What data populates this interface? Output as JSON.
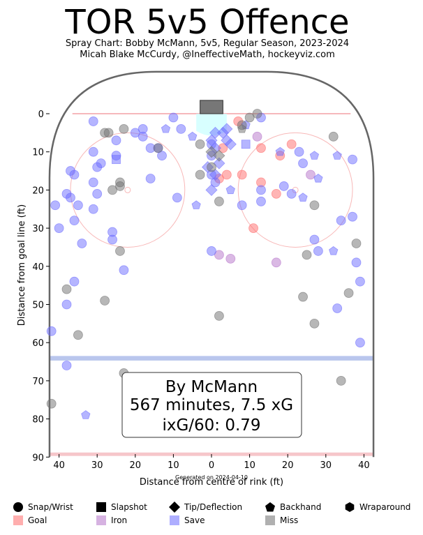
{
  "chart_data": {
    "type": "scatter",
    "title": "TOR 5v5 Offence",
    "subtitle_1": "Spray Chart: Bobby McMann, 5v5, Regular Season, 2023-2024",
    "subtitle_2": "Micah Blake McCurdy, @IneffectiveMath, hockeyviz.com",
    "xlabel": "Distance from centre of rink (ft)",
    "ylabel": "Distance from goal line (ft)",
    "footnote": "Generated on 2024-04-10",
    "x_ticks": [
      "40",
      "30",
      "20",
      "10",
      "0",
      "10",
      "20",
      "30",
      "40"
    ],
    "x_tick_values": [
      -40,
      -30,
      -20,
      -10,
      0,
      10,
      20,
      30,
      40
    ],
    "y_ticks": [
      "0",
      "10",
      "20",
      "30",
      "40",
      "50",
      "60",
      "70",
      "80",
      "90"
    ],
    "xlim": [
      -42.5,
      42.5
    ],
    "ylim": [
      -11,
      90
    ],
    "summary": {
      "line1": "By McMann",
      "line2": "567 minutes, 7.5 xG",
      "line3": "ixG/60: 0.79"
    },
    "colors": {
      "goal": "#ff6b6b",
      "iron": "#b573c9",
      "save": "#6b6bff",
      "miss": "#707070",
      "goal_line": "#f4a0a6",
      "blue_line": "#a8b8e8",
      "circle": "#f8b8b8",
      "crease": "#c8ffff"
    },
    "legend": {
      "shapes": [
        {
          "label": "Snap/Wrist",
          "icon": "circle"
        },
        {
          "label": "Slapshot",
          "icon": "square"
        },
        {
          "label": "Tip/Deflection",
          "icon": "diamond"
        },
        {
          "label": "Backhand",
          "icon": "pentagon"
        },
        {
          "label": "Wraparound",
          "icon": "hexagon"
        }
      ],
      "outcomes": [
        {
          "label": "Goal",
          "key": "goal"
        },
        {
          "label": "Iron",
          "key": "iron"
        },
        {
          "label": "Save",
          "key": "save"
        },
        {
          "label": "Miss",
          "key": "miss"
        }
      ]
    },
    "series": [
      {
        "name": "Goal",
        "key": "goal",
        "points": [
          {
            "x": 7,
            "y": 2,
            "shape": "circle"
          },
          {
            "x": 21,
            "y": 8,
            "shape": "circle"
          },
          {
            "x": 13,
            "y": 9,
            "shape": "circle"
          },
          {
            "x": 8,
            "y": 16,
            "shape": "circle"
          },
          {
            "x": 4,
            "y": 16,
            "shape": "circle"
          },
          {
            "x": 2,
            "y": 17,
            "shape": "circle"
          },
          {
            "x": 3,
            "y": 9,
            "shape": "circle"
          },
          {
            "x": 18,
            "y": 11,
            "shape": "circle"
          },
          {
            "x": 13,
            "y": 18,
            "shape": "circle"
          },
          {
            "x": 17,
            "y": 21,
            "shape": "circle"
          },
          {
            "x": 11,
            "y": 30,
            "shape": "circle"
          }
        ]
      },
      {
        "name": "Iron",
        "key": "iron",
        "points": [
          {
            "x": 26,
            "y": 16,
            "shape": "circle"
          },
          {
            "x": 12,
            "y": 6,
            "shape": "circle"
          },
          {
            "x": 2,
            "y": 37,
            "shape": "circle"
          },
          {
            "x": 5,
            "y": 38,
            "shape": "circle"
          },
          {
            "x": 17,
            "y": 39,
            "shape": "circle"
          }
        ]
      },
      {
        "name": "Save",
        "key": "save",
        "points": [
          {
            "x": -25,
            "y": 7,
            "shape": "circle"
          },
          {
            "x": -18,
            "y": 6,
            "shape": "circle"
          },
          {
            "x": -18,
            "y": 4,
            "shape": "circle"
          },
          {
            "x": -10,
            "y": 1,
            "shape": "circle"
          },
          {
            "x": -31,
            "y": 2,
            "shape": "circle"
          },
          {
            "x": -20,
            "y": 5,
            "shape": "circle"
          },
          {
            "x": -8,
            "y": 4,
            "shape": "circle"
          },
          {
            "x": -31,
            "y": 10,
            "shape": "circle"
          },
          {
            "x": -25,
            "y": 11,
            "shape": "circle"
          },
          {
            "x": -16,
            "y": 9,
            "shape": "circle"
          },
          {
            "x": -13,
            "y": 11,
            "shape": "circle"
          },
          {
            "x": -14,
            "y": 9,
            "shape": "circle"
          },
          {
            "x": -29,
            "y": 13,
            "shape": "circle"
          },
          {
            "x": -30,
            "y": 14,
            "shape": "circle"
          },
          {
            "x": -37,
            "y": 15,
            "shape": "circle"
          },
          {
            "x": -36,
            "y": 16,
            "shape": "circle"
          },
          {
            "x": -31,
            "y": 18,
            "shape": "circle"
          },
          {
            "x": -16,
            "y": 17,
            "shape": "circle"
          },
          {
            "x": -38,
            "y": 21,
            "shape": "circle"
          },
          {
            "x": -37,
            "y": 22,
            "shape": "circle"
          },
          {
            "x": -30,
            "y": 21,
            "shape": "circle"
          },
          {
            "x": -41,
            "y": 24,
            "shape": "circle"
          },
          {
            "x": -35,
            "y": 24,
            "shape": "circle"
          },
          {
            "x": -31,
            "y": 25,
            "shape": "circle"
          },
          {
            "x": -9,
            "y": 22,
            "shape": "circle"
          },
          {
            "x": -36,
            "y": 28,
            "shape": "circle"
          },
          {
            "x": -40,
            "y": 30,
            "shape": "circle"
          },
          {
            "x": -26,
            "y": 31,
            "shape": "circle"
          },
          {
            "x": -26,
            "y": 33,
            "shape": "circle"
          },
          {
            "x": -34,
            "y": 34,
            "shape": "circle"
          },
          {
            "x": -23,
            "y": 41,
            "shape": "circle"
          },
          {
            "x": -36,
            "y": 44,
            "shape": "circle"
          },
          {
            "x": -38,
            "y": 50,
            "shape": "circle"
          },
          {
            "x": -42,
            "y": 57,
            "shape": "circle"
          },
          {
            "x": -38,
            "y": 66,
            "shape": "circle"
          },
          {
            "x": 0,
            "y": 36,
            "shape": "circle"
          },
          {
            "x": 0,
            "y": 8,
            "shape": "circle"
          },
          {
            "x": 0,
            "y": 11,
            "shape": "circle"
          },
          {
            "x": 0,
            "y": 16,
            "shape": "circle"
          },
          {
            "x": 1,
            "y": 18,
            "shape": "circle"
          },
          {
            "x": 8,
            "y": 24,
            "shape": "circle"
          },
          {
            "x": 13,
            "y": 20,
            "shape": "circle"
          },
          {
            "x": 13,
            "y": 23,
            "shape": "circle"
          },
          {
            "x": 13,
            "y": 1,
            "shape": "circle"
          },
          {
            "x": 19,
            "y": 19,
            "shape": "circle"
          },
          {
            "x": 21,
            "y": 21,
            "shape": "circle"
          },
          {
            "x": 23,
            "y": 10,
            "shape": "circle"
          },
          {
            "x": 24,
            "y": 13,
            "shape": "circle"
          },
          {
            "x": 37,
            "y": 12,
            "shape": "circle"
          },
          {
            "x": 34,
            "y": 28,
            "shape": "circle"
          },
          {
            "x": 37,
            "y": 27,
            "shape": "circle"
          },
          {
            "x": 27,
            "y": 33,
            "shape": "circle"
          },
          {
            "x": 28,
            "y": 36,
            "shape": "circle"
          },
          {
            "x": 38,
            "y": 39,
            "shape": "circle"
          },
          {
            "x": 39,
            "y": 44,
            "shape": "circle"
          },
          {
            "x": 33,
            "y": 51,
            "shape": "circle"
          },
          {
            "x": 39,
            "y": 60,
            "shape": "circle"
          },
          {
            "x": -25,
            "y": 12,
            "shape": "square"
          },
          {
            "x": 9,
            "y": 8,
            "shape": "square"
          },
          {
            "x": 0,
            "y": 7,
            "shape": "diamond"
          },
          {
            "x": 1,
            "y": 9,
            "shape": "diamond"
          },
          {
            "x": 3,
            "y": 5,
            "shape": "diamond"
          },
          {
            "x": 4,
            "y": 4,
            "shape": "diamond"
          },
          {
            "x": 5,
            "y": 8,
            "shape": "diamond"
          },
          {
            "x": 1,
            "y": 5,
            "shape": "diamond"
          },
          {
            "x": 2,
            "y": 13,
            "shape": "diamond"
          },
          {
            "x": 0,
            "y": 20,
            "shape": "diamond"
          },
          {
            "x": -1,
            "y": 14,
            "shape": "diamond"
          },
          {
            "x": 4,
            "y": 7,
            "shape": "diamond"
          },
          {
            "x": 1,
            "y": 16,
            "shape": "diamond"
          },
          {
            "x": -12,
            "y": 4,
            "shape": "pentagon"
          },
          {
            "x": -5,
            "y": 6,
            "shape": "pentagon"
          },
          {
            "x": -4,
            "y": 24,
            "shape": "pentagon"
          },
          {
            "x": 9,
            "y": 3,
            "shape": "pentagon"
          },
          {
            "x": 5,
            "y": 20,
            "shape": "pentagon"
          },
          {
            "x": 18,
            "y": 10,
            "shape": "pentagon"
          },
          {
            "x": 24,
            "y": 22,
            "shape": "pentagon"
          },
          {
            "x": 28,
            "y": 17,
            "shape": "pentagon"
          },
          {
            "x": 27,
            "y": 11,
            "shape": "pentagon"
          },
          {
            "x": 33,
            "y": 11,
            "shape": "pentagon"
          },
          {
            "x": 32,
            "y": 36,
            "shape": "pentagon"
          },
          {
            "x": -33,
            "y": 79,
            "shape": "pentagon"
          }
        ]
      },
      {
        "name": "Miss",
        "key": "miss",
        "points": [
          {
            "x": -28,
            "y": 5,
            "shape": "circle"
          },
          {
            "x": -27,
            "y": 5,
            "shape": "circle"
          },
          {
            "x": -23,
            "y": 4,
            "shape": "circle"
          },
          {
            "x": -24,
            "y": 18,
            "shape": "circle"
          },
          {
            "x": -24,
            "y": 19,
            "shape": "circle"
          },
          {
            "x": -26,
            "y": 20,
            "shape": "circle"
          },
          {
            "x": -14,
            "y": 9,
            "shape": "circle"
          },
          {
            "x": -3,
            "y": 8,
            "shape": "circle"
          },
          {
            "x": -3,
            "y": 16,
            "shape": "circle"
          },
          {
            "x": 0,
            "y": 14,
            "shape": "circle"
          },
          {
            "x": 2,
            "y": 23,
            "shape": "circle"
          },
          {
            "x": 8,
            "y": 3,
            "shape": "circle"
          },
          {
            "x": 12,
            "y": 0,
            "shape": "circle"
          },
          {
            "x": 10,
            "y": 1,
            "shape": "circle"
          },
          {
            "x": -24,
            "y": 36,
            "shape": "circle"
          },
          {
            "x": -38,
            "y": 46,
            "shape": "circle"
          },
          {
            "x": -28,
            "y": 49,
            "shape": "circle"
          },
          {
            "x": -35,
            "y": 58,
            "shape": "circle"
          },
          {
            "x": -23,
            "y": 68,
            "shape": "circle"
          },
          {
            "x": -42,
            "y": 76,
            "shape": "circle"
          },
          {
            "x": 2,
            "y": 53,
            "shape": "circle"
          },
          {
            "x": 32,
            "y": 6,
            "shape": "circle"
          },
          {
            "x": 27,
            "y": 24,
            "shape": "circle"
          },
          {
            "x": 25,
            "y": 37,
            "shape": "circle"
          },
          {
            "x": 24,
            "y": 48,
            "shape": "circle"
          },
          {
            "x": 27,
            "y": 55,
            "shape": "circle"
          },
          {
            "x": 38,
            "y": 34,
            "shape": "circle"
          },
          {
            "x": 36,
            "y": 47,
            "shape": "circle"
          },
          {
            "x": 34,
            "y": 70,
            "shape": "circle"
          },
          {
            "x": 2,
            "y": 11,
            "shape": "diamond"
          },
          {
            "x": 0,
            "y": 10,
            "shape": "diamond"
          },
          {
            "x": 8,
            "y": 4,
            "shape": "pentagon"
          }
        ]
      }
    ]
  }
}
